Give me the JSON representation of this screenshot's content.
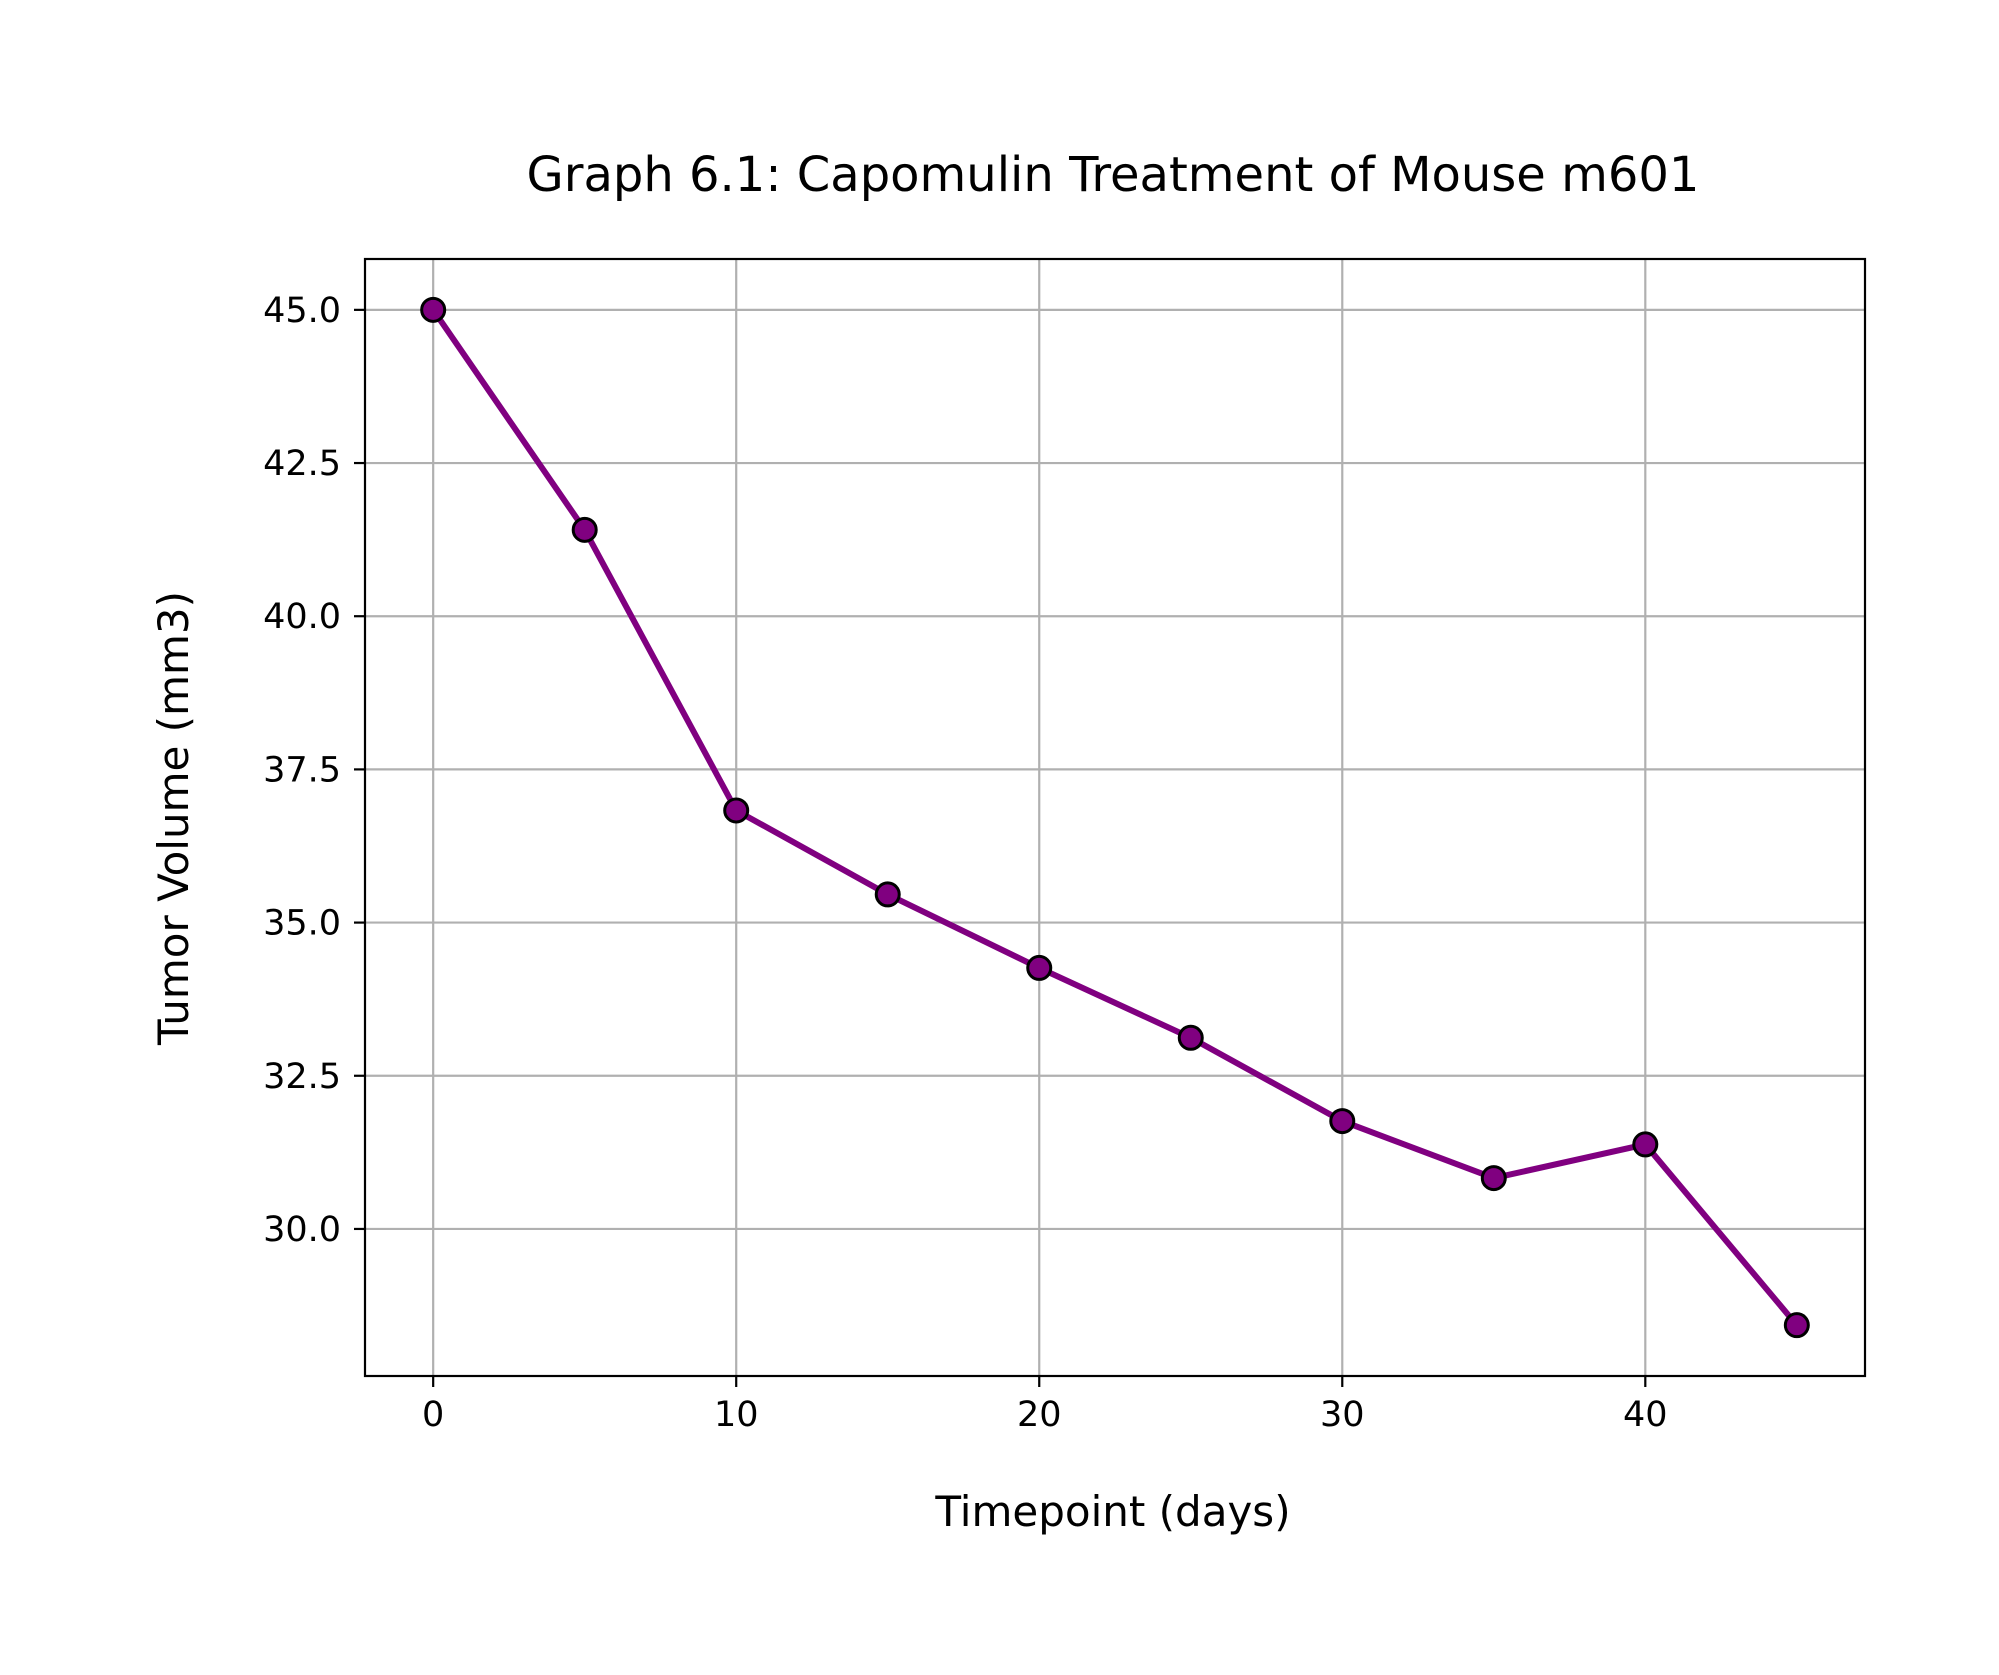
{
  "chart_data": {
    "type": "line",
    "title": "Graph 6.1: Capomulin Treatment of Mouse m601",
    "xlabel": "Timepoint (days)",
    "ylabel": "Tumor Volume (mm3)",
    "x": [
      0,
      5,
      10,
      15,
      20,
      25,
      30,
      35,
      40,
      45
    ],
    "series": [
      {
        "values": [
          45.0,
          41.41,
          36.83,
          35.46,
          34.26,
          33.12,
          31.76,
          30.83,
          31.38,
          28.43
        ]
      }
    ],
    "xlim": [
      -2.25,
      47.25
    ],
    "ylim": [
      27.6,
      45.83
    ],
    "xticks": [
      0,
      10,
      20,
      30,
      40
    ],
    "xtick_labels": [
      "0",
      "10",
      "20",
      "30",
      "40"
    ],
    "yticks": [
      30.0,
      32.5,
      35.0,
      37.5,
      40.0,
      42.5,
      45.0
    ],
    "ytick_labels": [
      "30.0",
      "32.5",
      "35.0",
      "37.5",
      "40.0",
      "42.5",
      "45.0"
    ],
    "grid": true,
    "line_color": "#800080",
    "marker_face_color": "#800080",
    "marker_edge_color": "#000000",
    "grid_color": "#b0b0b0"
  }
}
